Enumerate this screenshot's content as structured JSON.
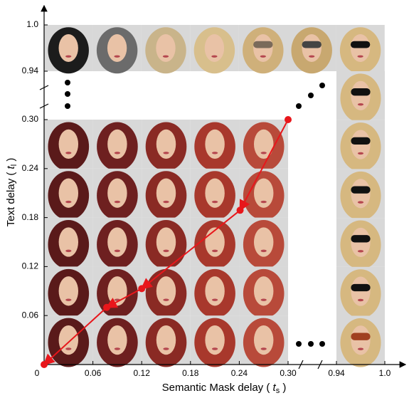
{
  "figure": {
    "x_label": {
      "text": "Semantic Mask delay (",
      "var": "t",
      "sub": "s",
      "close": ")"
    },
    "y_label": {
      "text": "Text delay (",
      "var": "t",
      "sub": "l",
      "close": ")"
    },
    "xticks": [
      0,
      0.06,
      0.12,
      0.18,
      0.24,
      {
        "value": 0.3,
        "label": "0.30"
      },
      0.94,
      {
        "value": 1,
        "label": "1.0"
      }
    ],
    "yticks": [
      0.06,
      0.12,
      0.18,
      0.24,
      {
        "value": 0.3,
        "label": "0.30"
      },
      0.94,
      {
        "value": 1,
        "label": "1.0"
      }
    ],
    "path": {
      "color": "#e8161b",
      "ts": [
        0.3,
        0.241,
        0.12,
        0.077,
        0.0
      ],
      "tl": [
        0.3,
        0.189,
        0.093,
        0.07,
        0.0
      ]
    }
  }
}
